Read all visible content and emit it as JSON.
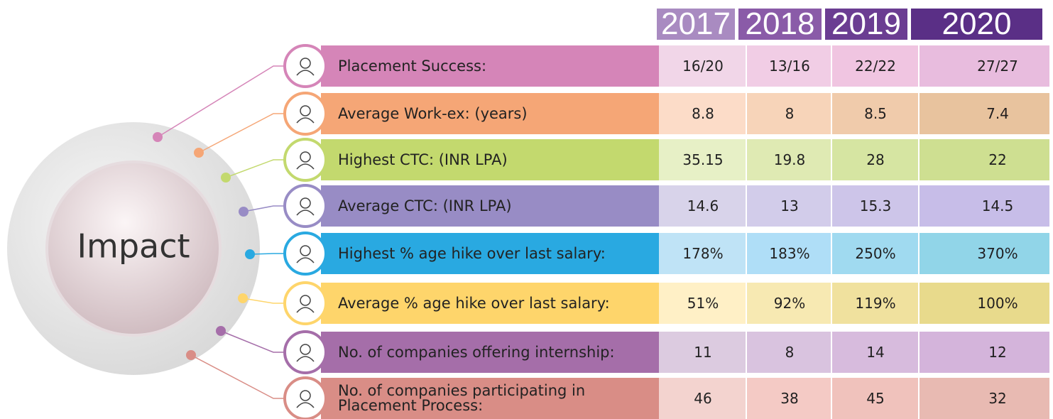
{
  "hub": {
    "label": "Impact"
  },
  "table": {
    "years": [
      "2017",
      "2018",
      "2019",
      "2020"
    ],
    "rows": [
      {
        "label": "Placement Success:",
        "color": "#d585b8",
        "tint": "#f1d6e8",
        "values": [
          "16/20",
          "13/16",
          "22/22",
          "27/27"
        ]
      },
      {
        "label": "Average Work-ex: (years)",
        "color": "#f5a676",
        "tint": "#fcdcc8",
        "values": [
          "8.8",
          "8",
          "8.5",
          "7.4"
        ]
      },
      {
        "label": "Highest CTC: (INR LPA)",
        "color": "#c3d96e",
        "tint": "#e7f0c6",
        "values": [
          "35.15",
          "19.8",
          "28",
          "22"
        ]
      },
      {
        "label": "Average CTC: (INR LPA)",
        "color": "#988cc5",
        "tint": "#d8d3ea",
        "values": [
          "14.6",
          "13",
          "15.3",
          "14.5"
        ]
      },
      {
        "label": "Highest % age hike over last salary:",
        "color": "#29a9e1",
        "tint": "#bfe3f6",
        "values": [
          "178%",
          "183%",
          "250%",
          "370%"
        ]
      },
      {
        "label": "Average % age hike over last salary:",
        "color": "#fed56b",
        "tint": "#fff0c6",
        "values": [
          "51%",
          "92%",
          "119%",
          "100%"
        ]
      },
      {
        "label": "No. of companies offering internship:",
        "color": "#a56ea9",
        "tint": "#dccbe0",
        "values": [
          "11",
          "8",
          "14",
          "12"
        ]
      },
      {
        "label": "No. of companies participating in Placement Process:",
        "color": "#d98d86",
        "tint": "#f3d3cf",
        "values": [
          "46",
          "38",
          "45",
          "32"
        ]
      }
    ]
  }
}
